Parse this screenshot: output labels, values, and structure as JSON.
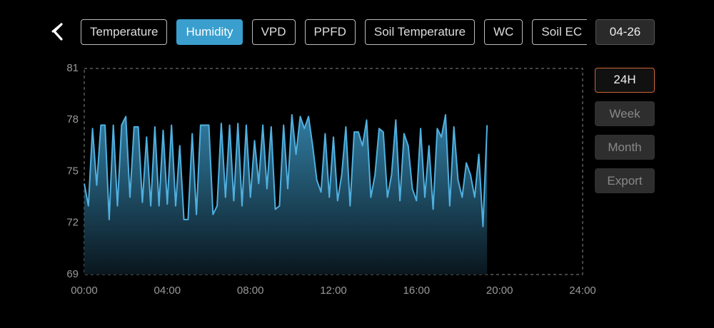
{
  "tabs": [
    "Temperature",
    "Humidity",
    "VPD",
    "PPFD",
    "Soil Temperature",
    "WC",
    "Soil EC"
  ],
  "selected_tab": 1,
  "date": "04-26",
  "ranges": [
    "24H",
    "Week",
    "Month",
    "Export"
  ],
  "selected_range": 0,
  "chart_data": {
    "type": "area",
    "color": "#4fb0e0",
    "x": [
      0,
      0.2,
      0.4,
      0.6,
      0.8,
      1,
      1.2,
      1.4,
      1.6,
      1.8,
      2,
      2.2,
      2.4,
      2.6,
      2.8,
      3,
      3.2,
      3.4,
      3.6,
      3.8,
      4,
      4.2,
      4.4,
      4.6,
      4.8,
      5,
      5.2,
      5.4,
      5.6,
      5.8,
      6,
      6.2,
      6.4,
      6.6,
      6.8,
      7,
      7.2,
      7.4,
      7.6,
      7.8,
      8,
      8.2,
      8.4,
      8.6,
      8.8,
      9,
      9.2,
      9.4,
      9.6,
      9.8,
      10,
      10.2,
      10.4,
      10.6,
      10.8,
      11,
      11.2,
      11.4,
      11.6,
      11.8,
      12,
      12.2,
      12.4,
      12.6,
      12.8,
      13,
      13.2,
      13.4,
      13.6,
      13.8,
      14,
      14.2,
      14.4,
      14.6,
      14.8,
      15,
      15.2,
      15.4,
      15.6,
      15.8,
      16,
      16.2,
      16.4,
      16.6,
      16.8,
      17,
      17.2,
      17.4,
      17.6,
      17.8,
      18,
      18.2,
      18.4,
      18.6,
      18.8,
      19,
      19.2,
      19.4
    ],
    "values": [
      74.3,
      73,
      77.5,
      74.2,
      77.7,
      77.7,
      72.2,
      77.7,
      73,
      77.7,
      78.2,
      73.5,
      77.6,
      77.6,
      73.2,
      77,
      73,
      77.6,
      73,
      77.4,
      73.1,
      77.7,
      73,
      76.5,
      72.2,
      72.2,
      77.2,
      72.5,
      77.7,
      77.7,
      77.7,
      72.5,
      73,
      77.8,
      73.5,
      77.7,
      73.3,
      77.8,
      73,
      77.7,
      73.5,
      76.8,
      74.3,
      77.7,
      74,
      77.6,
      72.8,
      73,
      77.7,
      74,
      78.3,
      76,
      78.2,
      77.5,
      78.2,
      76.5,
      74.5,
      73.8,
      77.2,
      73.5,
      77,
      73.3,
      74.8,
      77.6,
      73,
      77.3,
      77.3,
      76.5,
      78,
      73.5,
      74.8,
      77.5,
      77.3,
      73.5,
      74.8,
      78,
      73.3,
      77.2,
      76.5,
      74,
      73.3,
      77.5,
      73.5,
      76.5,
      72.8,
      77.5,
      77,
      78.3,
      73,
      77.6,
      74.5,
      73.5,
      75.5,
      74.8,
      73.5,
      76,
      71.8,
      77.7
    ],
    "xlim": [
      0,
      24
    ],
    "ylim": [
      69,
      81
    ],
    "yticks": [
      69,
      72,
      75,
      78,
      81
    ],
    "xticks": [
      {
        "value": 0,
        "label": "00:00"
      },
      {
        "value": 4,
        "label": "04:00"
      },
      {
        "value": 8,
        "label": "08:00"
      },
      {
        "value": 12,
        "label": "12:00"
      },
      {
        "value": 16,
        "label": "16:00"
      },
      {
        "value": 20,
        "label": "20:00"
      },
      {
        "value": 24,
        "label": "24:00"
      }
    ]
  }
}
